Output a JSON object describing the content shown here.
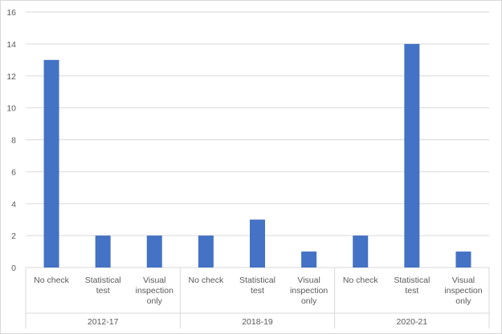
{
  "chart_data": {
    "type": "bar",
    "title": "",
    "xlabel": "",
    "ylabel": "",
    "ylim": [
      0,
      16
    ],
    "yticks": [
      0,
      2,
      4,
      6,
      8,
      10,
      12,
      14,
      16
    ],
    "grid": true,
    "legend": "none",
    "bar_color": "#4472C4",
    "groups": [
      {
        "name": "2012-17",
        "categories": [
          "No check",
          "Statistical test",
          "Visual inspection only"
        ],
        "values": [
          13,
          2,
          2
        ]
      },
      {
        "name": "2018-19",
        "categories": [
          "No check",
          "Statistical test",
          "Visual inspection only"
        ],
        "values": [
          2,
          3,
          1
        ]
      },
      {
        "name": "2020-21",
        "categories": [
          "No check",
          "Statistical test",
          "Visual inspection only"
        ],
        "values": [
          2,
          14,
          1
        ]
      }
    ]
  }
}
